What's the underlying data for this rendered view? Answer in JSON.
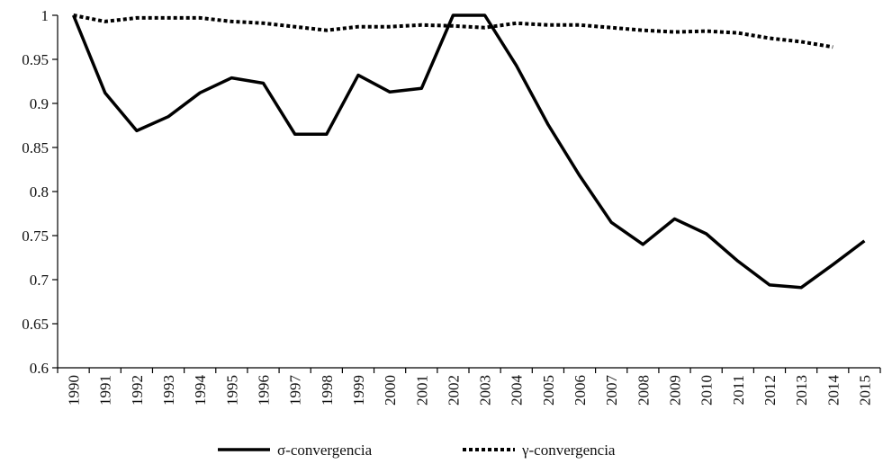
{
  "chart_data": {
    "type": "line",
    "title": "",
    "xlabel": "",
    "ylabel": "",
    "ylim": [
      0.6,
      1
    ],
    "yticks": [
      "0.6",
      "0.65",
      "0.7",
      "0.75",
      "0.8",
      "0.85",
      "0.9",
      "0.95",
      "1"
    ],
    "categories": [
      "1990",
      "1991",
      "1992",
      "1993",
      "1994",
      "1995",
      "1996",
      "1997",
      "1998",
      "1999",
      "2000",
      "2001",
      "2002",
      "2003",
      "2004",
      "2005",
      "2006",
      "2007",
      "2008",
      "2009",
      "2010",
      "2011",
      "2012",
      "2013",
      "2014",
      "2015"
    ],
    "legend_position": "bottom",
    "grid": false,
    "series": [
      {
        "name": "σ-convergencia",
        "style": "solid",
        "color": "#000000",
        "values": [
          1.0,
          0.912,
          0.869,
          0.885,
          0.912,
          0.929,
          0.923,
          0.865,
          0.865,
          0.932,
          0.913,
          0.917,
          1.0,
          1.0,
          0.943,
          0.876,
          0.818,
          0.765,
          0.74,
          0.769,
          0.752,
          0.721,
          0.694,
          0.691,
          0.717,
          0.744
        ]
      },
      {
        "name": "γ-convergencia",
        "style": "dotted",
        "color": "#000000",
        "values": [
          1.0,
          0.993,
          0.997,
          0.997,
          0.997,
          0.993,
          0.991,
          0.987,
          0.983,
          0.987,
          0.987,
          0.989,
          0.988,
          0.986,
          0.991,
          0.989,
          0.989,
          0.986,
          0.983,
          0.981,
          0.982,
          0.98,
          0.974,
          0.97,
          0.964,
          null
        ]
      }
    ]
  }
}
